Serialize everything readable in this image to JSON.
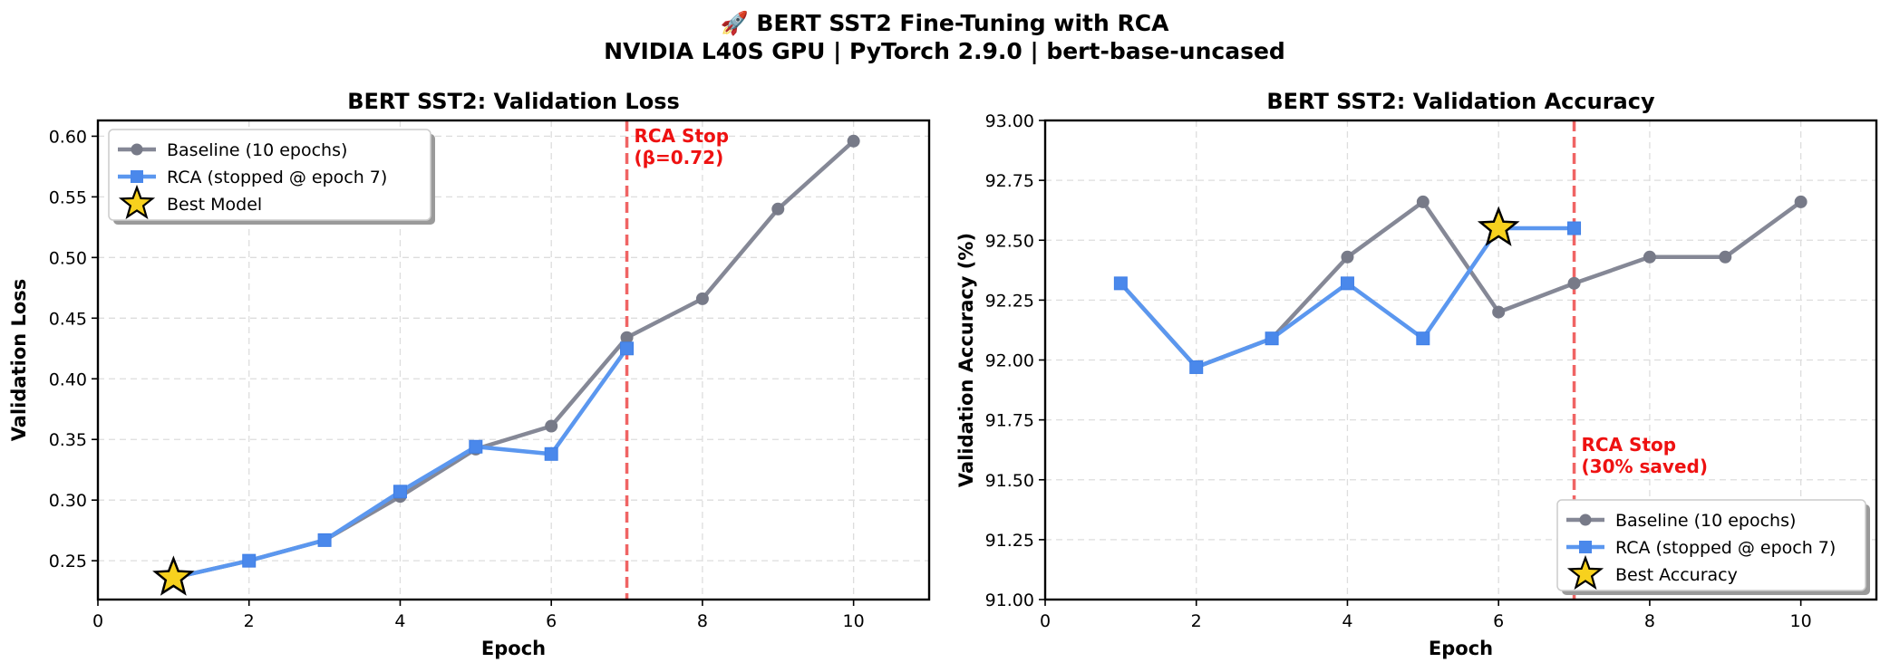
{
  "figure": {
    "title_line1": "🚀 BERT SST2 Fine-Tuning with RCA",
    "title_line2": "NVIDIA L40S GPU | PyTorch 2.9.0 | bert-base-uncased"
  },
  "colors": {
    "baseline": "#858896",
    "rca": "#5b97ef",
    "stop_line": "#f06464",
    "stop_text": "#ee1111",
    "star_fill": "#f7d11e"
  },
  "chart_data": [
    {
      "type": "line",
      "title": "BERT SST2: Validation Loss",
      "xlabel": "Epoch",
      "ylabel": "Validation Loss",
      "xlim": [
        0,
        11
      ],
      "ylim": [
        0.218,
        0.613
      ],
      "xticks": [
        0,
        2,
        4,
        6,
        8,
        10
      ],
      "yticks": [
        0.25,
        0.3,
        0.35,
        0.4,
        0.45,
        0.5,
        0.55,
        0.6
      ],
      "ytick_decimals": 2,
      "grid": true,
      "legend_position": "top-left",
      "series": [
        {
          "name": "Baseline (10 epochs)",
          "x": [
            1,
            2,
            3,
            4,
            5,
            6,
            7,
            8,
            9,
            10
          ],
          "y": [
            0.236,
            0.25,
            0.267,
            0.303,
            0.342,
            0.361,
            0.434,
            0.466,
            0.54,
            0.596
          ]
        },
        {
          "name": "RCA (stopped @ epoch 7)",
          "x": [
            1,
            2,
            3,
            4,
            5,
            6,
            7
          ],
          "y": [
            0.236,
            0.25,
            0.267,
            0.307,
            0.344,
            0.338,
            0.425
          ]
        }
      ],
      "best_marker": {
        "label": "Best Model",
        "x": 1,
        "y": 0.236
      },
      "stop_line": {
        "x": 7,
        "text_line1": "RCA Stop",
        "text_line2": "(β=0.72)",
        "text_anchor_y": 0.595
      }
    },
    {
      "type": "line",
      "title": "BERT SST2: Validation Accuracy",
      "xlabel": "Epoch",
      "ylabel": "Validation Accuracy (%)",
      "xlim": [
        0,
        11
      ],
      "ylim": [
        91.0,
        93.0
      ],
      "xticks": [
        0,
        2,
        4,
        6,
        8,
        10
      ],
      "yticks": [
        91.0,
        91.25,
        91.5,
        91.75,
        92.0,
        92.25,
        92.5,
        92.75,
        93.0
      ],
      "ytick_decimals": 2,
      "grid": true,
      "legend_position": "bottom-right",
      "series": [
        {
          "name": "Baseline (10 epochs)",
          "x": [
            1,
            2,
            3,
            4,
            5,
            6,
            7,
            8,
            9,
            10
          ],
          "y": [
            92.32,
            91.97,
            92.09,
            92.43,
            92.66,
            92.2,
            92.32,
            92.43,
            92.43,
            92.66
          ]
        },
        {
          "name": "RCA (stopped @ epoch 7)",
          "x": [
            1,
            2,
            3,
            4,
            5,
            6,
            7
          ],
          "y": [
            92.32,
            91.97,
            92.09,
            92.32,
            92.09,
            92.55,
            92.55
          ]
        }
      ],
      "best_marker": {
        "label": "Best Accuracy",
        "x": 6,
        "y": 92.55
      },
      "stop_line": {
        "x": 7,
        "text_line1": "RCA Stop",
        "text_line2": "(30% saved)",
        "text_anchor_y": 91.62
      }
    }
  ]
}
